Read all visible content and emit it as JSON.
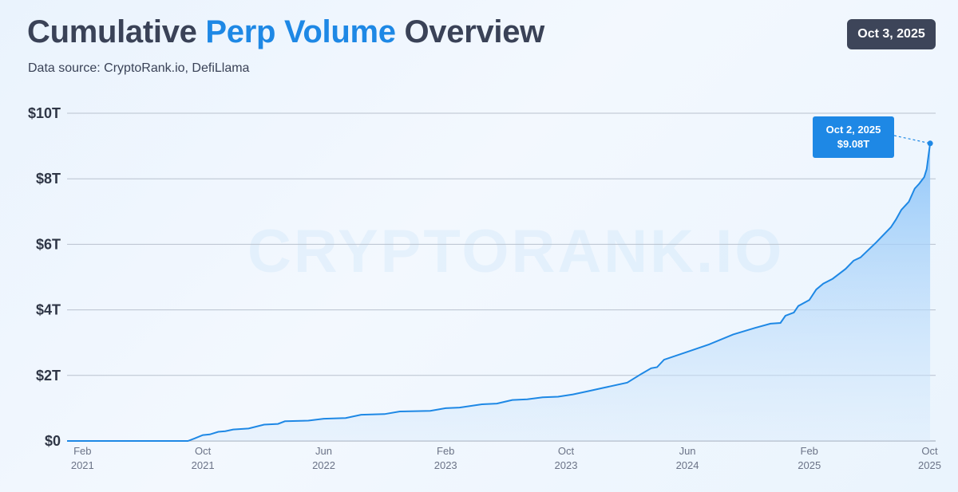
{
  "header": {
    "title_part1": "Cumulative ",
    "title_accent": "Perp Volume",
    "title_part2": " Overview",
    "subtitle": "Data source: CryptoRank.io, DefiLlama",
    "date_badge": "Oct 3, 2025"
  },
  "watermark": "CRYPTORANK.IO",
  "callout": {
    "date": "Oct 2, 2025",
    "value": "$9.08T"
  },
  "colors": {
    "line": "#1e88e5",
    "accent": "#1e88e5",
    "badge": "#3d4559",
    "title": "#3a4257"
  },
  "chart_data": {
    "type": "area",
    "title": "Cumulative Perp Volume Overview",
    "xlabel": "",
    "ylabel": "",
    "units": "trillion USD",
    "ylim": [
      0,
      10
    ],
    "xlim": [
      "2021-01-01",
      "2025-10-13"
    ],
    "grid": true,
    "legend": "none",
    "y_ticks": [
      {
        "value": 0,
        "label": "$0"
      },
      {
        "value": 2,
        "label": "$2T"
      },
      {
        "value": 4,
        "label": "$4T"
      },
      {
        "value": 6,
        "label": "$6T"
      },
      {
        "value": 8,
        "label": "$8T"
      },
      {
        "value": 10,
        "label": "$10T"
      }
    ],
    "x_ticks": [
      {
        "date": "2021-02-01",
        "month": "Feb",
        "year": "2021"
      },
      {
        "date": "2021-10-01",
        "month": "Oct",
        "year": "2021"
      },
      {
        "date": "2022-06-01",
        "month": "Jun",
        "year": "2022"
      },
      {
        "date": "2023-02-01",
        "month": "Feb",
        "year": "2023"
      },
      {
        "date": "2023-10-01",
        "month": "Oct",
        "year": "2023"
      },
      {
        "date": "2024-06-01",
        "month": "Jun",
        "year": "2024"
      },
      {
        "date": "2025-02-01",
        "month": "Feb",
        "year": "2025"
      },
      {
        "date": "2025-10-01",
        "month": "Oct",
        "year": "2025"
      }
    ],
    "series": [
      {
        "points": [
          [
            "2021-01-01",
            0
          ],
          [
            "2021-09-01",
            0
          ],
          [
            "2021-09-15",
            0.08
          ],
          [
            "2021-10-01",
            0.18
          ],
          [
            "2021-10-15",
            0.2
          ],
          [
            "2021-11-01",
            0.28
          ],
          [
            "2021-11-15",
            0.3
          ],
          [
            "2021-12-01",
            0.35
          ],
          [
            "2022-01-01",
            0.38
          ],
          [
            "2022-02-01",
            0.5
          ],
          [
            "2022-03-01",
            0.52
          ],
          [
            "2022-03-15",
            0.6
          ],
          [
            "2022-05-01",
            0.62
          ],
          [
            "2022-06-01",
            0.68
          ],
          [
            "2022-07-15",
            0.7
          ],
          [
            "2022-08-15",
            0.8
          ],
          [
            "2022-10-01",
            0.82
          ],
          [
            "2022-11-01",
            0.9
          ],
          [
            "2023-01-01",
            0.92
          ],
          [
            "2023-02-01",
            1.0
          ],
          [
            "2023-03-01",
            1.02
          ],
          [
            "2023-04-15",
            1.12
          ],
          [
            "2023-05-15",
            1.14
          ],
          [
            "2023-06-15",
            1.25
          ],
          [
            "2023-07-15",
            1.27
          ],
          [
            "2023-08-15",
            1.33
          ],
          [
            "2023-09-15",
            1.35
          ],
          [
            "2023-10-15",
            1.42
          ],
          [
            "2023-11-15",
            1.52
          ],
          [
            "2023-12-15",
            1.62
          ],
          [
            "2024-02-01",
            1.78
          ],
          [
            "2024-03-01",
            2.05
          ],
          [
            "2024-03-20",
            2.22
          ],
          [
            "2024-04-01",
            2.25
          ],
          [
            "2024-04-15",
            2.48
          ],
          [
            "2024-06-01",
            2.72
          ],
          [
            "2024-07-15",
            2.95
          ],
          [
            "2024-09-01",
            3.25
          ],
          [
            "2024-10-15",
            3.45
          ],
          [
            "2024-11-15",
            3.58
          ],
          [
            "2024-12-05",
            3.6
          ],
          [
            "2024-12-15",
            3.82
          ],
          [
            "2025-01-01",
            3.92
          ],
          [
            "2025-01-10",
            4.12
          ],
          [
            "2025-02-01",
            4.3
          ],
          [
            "2025-02-15",
            4.62
          ],
          [
            "2025-03-01",
            4.8
          ],
          [
            "2025-03-20",
            4.95
          ],
          [
            "2025-04-15",
            5.25
          ],
          [
            "2025-05-01",
            5.5
          ],
          [
            "2025-05-15",
            5.6
          ],
          [
            "2025-06-15",
            6.05
          ],
          [
            "2025-07-15",
            6.52
          ],
          [
            "2025-07-25",
            6.75
          ],
          [
            "2025-08-05",
            7.05
          ],
          [
            "2025-08-20",
            7.3
          ],
          [
            "2025-09-01",
            7.7
          ],
          [
            "2025-09-10",
            7.85
          ],
          [
            "2025-09-20",
            8.05
          ],
          [
            "2025-09-25",
            8.3
          ],
          [
            "2025-10-02",
            9.08
          ]
        ]
      }
    ],
    "annotation": {
      "date": "2025-10-02",
      "value": 9.08,
      "label_date": "Oct 2, 2025",
      "label_value": "$9.08T"
    }
  }
}
